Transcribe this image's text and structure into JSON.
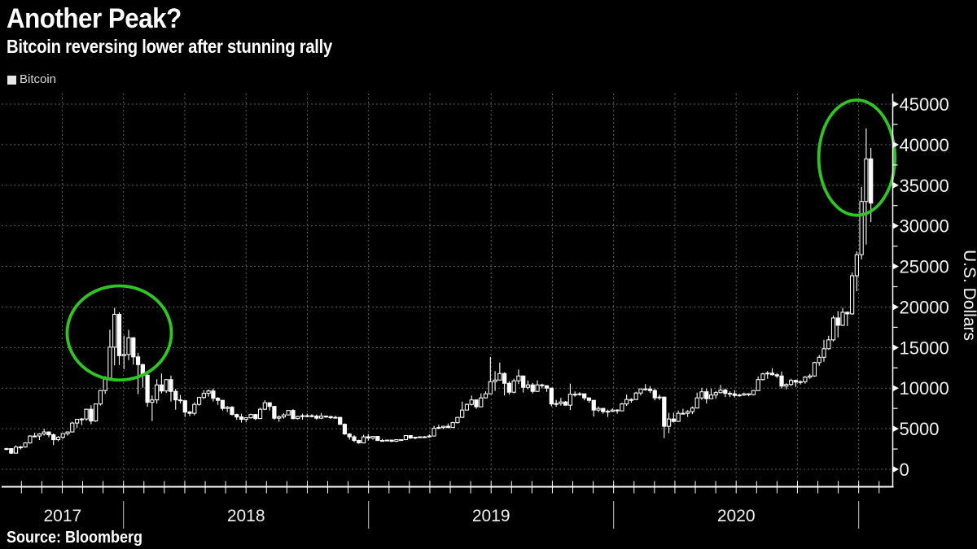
{
  "header": {
    "title": "Another Peak?",
    "subtitle": "Bitcoin reversing lower after stunning rally"
  },
  "legend": {
    "label": "Bitcoin"
  },
  "source": {
    "label": "Source: Bloomberg"
  },
  "colors": {
    "background": "#000000",
    "text": "#ffffff",
    "grid": "#5f5f5f",
    "candle": "#ffffff",
    "axis_text": "#f2f2f2",
    "axis_line": "#ffffff",
    "year_divider": "#cccccc",
    "annotation_green": "#30c525"
  },
  "chart_data": {
    "type": "candlestick",
    "title": "Another Peak?",
    "subtitle": "Bitcoin reversing lower after stunning rally",
    "legend": "Bitcoin",
    "legend_position": "top-left",
    "y_axis_label": "U.S. Dollars",
    "unit": "USD",
    "interval": "weekly",
    "x_start": "2017-07-03",
    "x_end": "2021-01-11",
    "x_year_labels": [
      "2017",
      "2018",
      "2019",
      "2020"
    ],
    "y_ticks": [
      0,
      5000,
      10000,
      15000,
      20000,
      25000,
      30000,
      35000,
      40000,
      45000
    ],
    "y_minor_tick_step": 2500,
    "ylim": [
      0,
      46000
    ],
    "grid": true,
    "annotations": [
      {
        "type": "ellipse",
        "label": "dec-2017-peak",
        "center_week": 24,
        "center_price": 16800,
        "radius_weeks": 11.1,
        "radius_price": 5800
      },
      {
        "type": "ellipse",
        "label": "jan-2021-peak",
        "center_week": 181,
        "center_price": 38400,
        "radius_weeks": 8.1,
        "radius_price": 7100
      }
    ],
    "ohlc_weekly": [
      [
        2500,
        2650,
        2350,
        2550
      ],
      [
        2550,
        2560,
        1900,
        1990
      ],
      [
        1990,
        2950,
        1940,
        2750
      ],
      [
        2750,
        2900,
        2450,
        2750
      ],
      [
        2750,
        3350,
        2650,
        3250
      ],
      [
        3250,
        4200,
        3150,
        4100
      ],
      [
        4100,
        4500,
        3950,
        4100
      ],
      [
        4100,
        4450,
        3600,
        4350
      ],
      [
        4350,
        4980,
        4150,
        4600
      ],
      [
        4600,
        4650,
        3950,
        4250
      ],
      [
        4250,
        4420,
        2980,
        3650
      ],
      [
        3650,
        4100,
        3450,
        3950
      ],
      [
        3950,
        4450,
        3750,
        4400
      ],
      [
        4400,
        4650,
        4150,
        4600
      ],
      [
        4600,
        5850,
        4550,
        5700
      ],
      [
        5700,
        6180,
        5100,
        6150
      ],
      [
        6150,
        6300,
        5450,
        6200
      ],
      [
        6200,
        7480,
        5980,
        7400
      ],
      [
        7400,
        7900,
        5550,
        5950
      ],
      [
        5950,
        8100,
        5850,
        8050
      ],
      [
        8050,
        9750,
        7850,
        9700
      ],
      [
        9700,
        11480,
        9300,
        11250
      ],
      [
        11250,
        17200,
        11100,
        15050
      ],
      [
        15050,
        19900,
        12800,
        19100
      ],
      [
        19100,
        19350,
        12850,
        14000
      ],
      [
        14000,
        16480,
        12350,
        14150
      ],
      [
        14150,
        17180,
        13450,
        16200
      ],
      [
        16200,
        16300,
        12900,
        13850
      ],
      [
        13850,
        14350,
        9250,
        12900
      ],
      [
        12900,
        13000,
        10050,
        11600
      ],
      [
        11600,
        11700,
        7700,
        8250
      ],
      [
        8250,
        9100,
        5950,
        8550
      ],
      [
        8550,
        11100,
        8100,
        10400
      ],
      [
        10400,
        11800,
        9350,
        9650
      ],
      [
        9650,
        11100,
        9400,
        11050
      ],
      [
        11050,
        11550,
        8350,
        9600
      ],
      [
        9600,
        9900,
        7350,
        8550
      ],
      [
        8550,
        9150,
        8100,
        8450
      ],
      [
        8450,
        8500,
        6450,
        7050
      ],
      [
        7050,
        7200,
        6550,
        6900
      ],
      [
        6900,
        8250,
        6650,
        8000
      ],
      [
        8000,
        8950,
        7850,
        8850
      ],
      [
        8850,
        9750,
        8650,
        9350
      ],
      [
        9350,
        9850,
        8950,
        9650
      ],
      [
        9650,
        9950,
        8350,
        8750
      ],
      [
        8750,
        8900,
        7950,
        8500
      ],
      [
        8500,
        8550,
        7250,
        7500
      ],
      [
        7500,
        7800,
        7050,
        7650
      ],
      [
        7650,
        7780,
        6650,
        6750
      ],
      [
        6750,
        6850,
        6100,
        6450
      ],
      [
        6450,
        6850,
        5750,
        6150
      ],
      [
        6150,
        6400,
        5800,
        6350
      ],
      [
        6350,
        6850,
        6250,
        6750
      ],
      [
        6750,
        6800,
        6050,
        6250
      ],
      [
        6250,
        7600,
        6200,
        7400
      ],
      [
        7400,
        8500,
        7300,
        8200
      ],
      [
        8200,
        8250,
        7250,
        7750
      ],
      [
        7750,
        7800,
        6100,
        6300
      ],
      [
        6300,
        6650,
        5850,
        6450
      ],
      [
        6450,
        6900,
        6250,
        6700
      ],
      [
        6700,
        7300,
        6650,
        7250
      ],
      [
        7250,
        7400,
        6150,
        6250
      ],
      [
        6250,
        6600,
        6150,
        6500
      ],
      [
        6500,
        6850,
        6100,
        6600
      ],
      [
        6600,
        6850,
        6400,
        6600
      ],
      [
        6600,
        6800,
        6400,
        6550
      ],
      [
        6550,
        6750,
        6100,
        6300
      ],
      [
        6300,
        6950,
        6200,
        6550
      ],
      [
        6550,
        6600,
        6350,
        6500
      ],
      [
        6500,
        6550,
        6200,
        6350
      ],
      [
        6350,
        6600,
        6300,
        6400
      ],
      [
        6400,
        6450,
        5450,
        5550
      ],
      [
        5550,
        5650,
        4250,
        4350
      ],
      [
        4350,
        4450,
        3650,
        4000
      ],
      [
        4000,
        4200,
        3350,
        3550
      ],
      [
        3550,
        3650,
        3150,
        3250
      ],
      [
        3250,
        4250,
        3200,
        4000
      ],
      [
        4000,
        4350,
        3550,
        3850
      ],
      [
        3850,
        4100,
        3650,
        4050
      ],
      [
        4050,
        4100,
        3500,
        3550
      ],
      [
        3550,
        3750,
        3450,
        3550
      ],
      [
        3550,
        3650,
        3450,
        3600
      ],
      [
        3600,
        3650,
        3350,
        3450
      ],
      [
        3450,
        3700,
        3350,
        3650
      ],
      [
        3650,
        3700,
        3500,
        3650
      ],
      [
        3650,
        4200,
        3640,
        4150
      ],
      [
        4150,
        4190,
        3750,
        3850
      ],
      [
        3850,
        3950,
        3700,
        3950
      ],
      [
        3950,
        4050,
        3850,
        4000
      ],
      [
        4000,
        4100,
        3900,
        4000
      ],
      [
        4000,
        4290,
        3900,
        4100
      ],
      [
        4100,
        5350,
        4050,
        5050
      ],
      [
        5050,
        5480,
        4950,
        5150
      ],
      [
        5150,
        5350,
        4950,
        5300
      ],
      [
        5300,
        5650,
        5050,
        5150
      ],
      [
        5150,
        5850,
        5100,
        5750
      ],
      [
        5750,
        6450,
        5650,
        6400
      ],
      [
        6400,
        8350,
        6350,
        7300
      ],
      [
        7300,
        8100,
        7250,
        8000
      ],
      [
        8000,
        9100,
        7850,
        8550
      ],
      [
        8550,
        8600,
        7450,
        7700
      ],
      [
        7700,
        9350,
        7650,
        8800
      ],
      [
        8800,
        9600,
        8750,
        9300
      ],
      [
        9300,
        13850,
        9250,
        10800
      ],
      [
        10800,
        12100,
        9650,
        11000
      ],
      [
        11000,
        13150,
        10950,
        11800
      ],
      [
        11800,
        11950,
        9100,
        10600
      ],
      [
        10600,
        10850,
        9200,
        9500
      ],
      [
        9500,
        11150,
        9350,
        10900
      ],
      [
        10900,
        12300,
        10500,
        11500
      ],
      [
        11500,
        11550,
        9450,
        10100
      ],
      [
        10100,
        10950,
        9850,
        10400
      ],
      [
        10400,
        10650,
        9350,
        9600
      ],
      [
        9600,
        10950,
        9550,
        10400
      ],
      [
        10400,
        10550,
        9950,
        10300
      ],
      [
        10300,
        10350,
        9550,
        10000
      ],
      [
        10000,
        10050,
        7750,
        8050
      ],
      [
        8050,
        8550,
        7700,
        8100
      ],
      [
        8100,
        8800,
        7850,
        8300
      ],
      [
        8300,
        8400,
        7850,
        7900
      ],
      [
        7900,
        10550,
        7300,
        9250
      ],
      [
        9250,
        9600,
        8950,
        9200
      ],
      [
        9200,
        9500,
        9050,
        9300
      ],
      [
        9300,
        9300,
        8500,
        8800
      ],
      [
        8800,
        8850,
        8200,
        8500
      ],
      [
        8500,
        8500,
        6500,
        7300
      ],
      [
        7300,
        7750,
        7050,
        7500
      ],
      [
        7500,
        7550,
        6850,
        7100
      ],
      [
        7100,
        7350,
        6450,
        7150
      ],
      [
        7150,
        7500,
        7050,
        7300
      ],
      [
        7300,
        7400,
        6850,
        7200
      ],
      [
        7200,
        8200,
        7150,
        8050
      ],
      [
        8050,
        9200,
        7800,
        8600
      ],
      [
        8600,
        8750,
        8200,
        8600
      ],
      [
        8600,
        9550,
        8550,
        9400
      ],
      [
        9400,
        9900,
        9100,
        9900
      ],
      [
        9900,
        10500,
        9700,
        9900
      ],
      [
        9900,
        10250,
        9400,
        9700
      ],
      [
        9700,
        9950,
        8500,
        8800
      ],
      [
        8800,
        9200,
        8550,
        8900
      ],
      [
        8900,
        8950,
        3850,
        5300
      ],
      [
        5300,
        6950,
        4450,
        6200
      ],
      [
        6200,
        6980,
        5750,
        5900
      ],
      [
        5900,
        7250,
        5850,
        6900
      ],
      [
        6900,
        7450,
        6750,
        6900
      ],
      [
        6900,
        7300,
        6450,
        7100
      ],
      [
        7100,
        7750,
        6800,
        7550
      ],
      [
        7550,
        9450,
        7500,
        8800
      ],
      [
        8800,
        10050,
        8550,
        9550
      ],
      [
        9550,
        9950,
        8100,
        8700
      ],
      [
        8700,
        9950,
        8650,
        9150
      ],
      [
        9150,
        9650,
        8700,
        9450
      ],
      [
        9450,
        10400,
        9350,
        9750
      ],
      [
        9750,
        9950,
        8900,
        9350
      ],
      [
        9350,
        9600,
        8900,
        9300
      ],
      [
        9300,
        9750,
        8850,
        9100
      ],
      [
        9100,
        9300,
        8950,
        9150
      ],
      [
        9150,
        9450,
        9050,
        9300
      ],
      [
        9300,
        9350,
        9000,
        9200
      ],
      [
        9200,
        9750,
        9100,
        9700
      ],
      [
        9700,
        11450,
        9650,
        11050
      ],
      [
        11050,
        11900,
        10950,
        11750
      ],
      [
        11750,
        12100,
        11150,
        11850
      ],
      [
        11850,
        12450,
        11550,
        11650
      ],
      [
        11650,
        11850,
        11250,
        11500
      ],
      [
        11500,
        12050,
        9950,
        10250
      ],
      [
        10250,
        10600,
        9850,
        10450
      ],
      [
        10450,
        11150,
        10250,
        10950
      ],
      [
        10950,
        11050,
        10150,
        10750
      ],
      [
        10750,
        10950,
        10450,
        10800
      ],
      [
        10800,
        11500,
        10550,
        11350
      ],
      [
        11350,
        11750,
        11150,
        11500
      ],
      [
        11500,
        13250,
        11400,
        13150
      ],
      [
        13150,
        14100,
        12750,
        13800
      ],
      [
        13800,
        15950,
        13250,
        14850
      ],
      [
        14850,
        16450,
        14750,
        15950
      ],
      [
        15950,
        18950,
        15750,
        18650
      ],
      [
        18650,
        19500,
        16250,
        17750
      ],
      [
        17750,
        19900,
        17650,
        19350
      ],
      [
        19350,
        19450,
        17650,
        19150
      ],
      [
        19150,
        24250,
        19050,
        23850
      ],
      [
        23850,
        26850,
        21950,
        26450
      ],
      [
        26450,
        34800,
        25850,
        33000
      ],
      [
        33000,
        42000,
        27700,
        38250
      ],
      [
        38250,
        39600,
        30450,
        32800
      ]
    ]
  }
}
